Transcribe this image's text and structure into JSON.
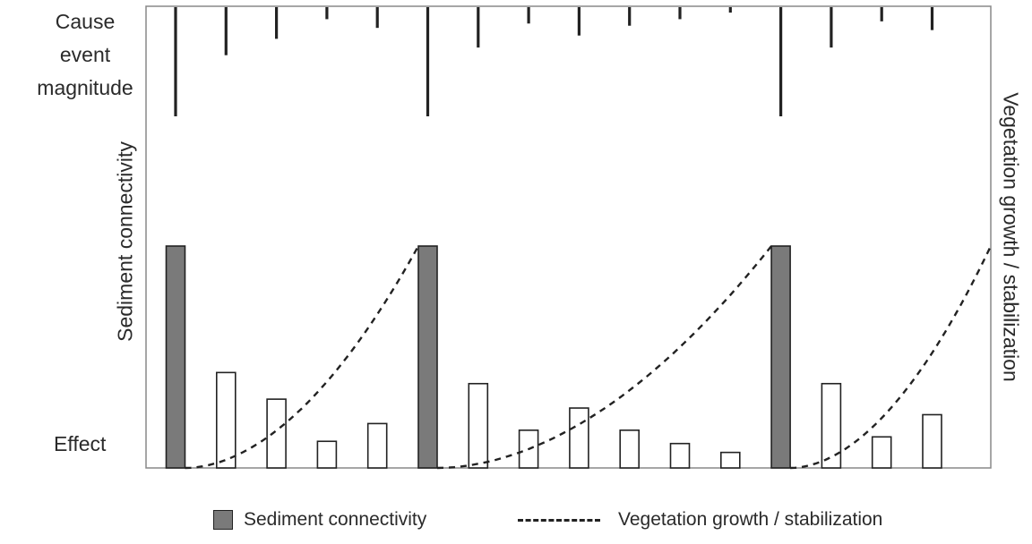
{
  "labels": {
    "cause_line1": "Cause",
    "cause_line2": "event",
    "cause_line3": "magnitude",
    "effect": "Effect",
    "y_left": "Sediment connectivity",
    "y_right": "Vegetation growth / stabilization"
  },
  "legend": {
    "bar_label": "Sediment connectivity",
    "line_label": "Vegetation growth / stabilization"
  },
  "colors": {
    "major_bar": "#7a7a7a",
    "minor_bar": "#ffffff",
    "stroke": "#222222"
  },
  "chart_data": {
    "type": "bar",
    "events": [
      {
        "cause": 1.0,
        "effect": 1.0,
        "major": true
      },
      {
        "cause": 0.44,
        "effect": 0.43,
        "major": false
      },
      {
        "cause": 0.29,
        "effect": 0.31,
        "major": false
      },
      {
        "cause": 0.11,
        "effect": 0.12,
        "major": false
      },
      {
        "cause": 0.19,
        "effect": 0.2,
        "major": false
      },
      {
        "cause": 1.0,
        "effect": 1.0,
        "major": true
      },
      {
        "cause": 0.37,
        "effect": 0.38,
        "major": false
      },
      {
        "cause": 0.15,
        "effect": 0.17,
        "major": false
      },
      {
        "cause": 0.26,
        "effect": 0.27,
        "major": false
      },
      {
        "cause": 0.17,
        "effect": 0.17,
        "major": false
      },
      {
        "cause": 0.11,
        "effect": 0.11,
        "major": false
      },
      {
        "cause": 0.05,
        "effect": 0.07,
        "major": false
      },
      {
        "cause": 1.0,
        "effect": 1.0,
        "major": true
      },
      {
        "cause": 0.37,
        "effect": 0.38,
        "major": false
      },
      {
        "cause": 0.13,
        "effect": 0.14,
        "major": false
      },
      {
        "cause": 0.21,
        "effect": 0.24,
        "major": false
      }
    ],
    "vegetation_cycles": [
      {
        "start_event": 0,
        "end_event": 5
      },
      {
        "start_event": 5,
        "end_event": 12
      },
      {
        "start_event": 12,
        "end_event": 16
      }
    ]
  }
}
